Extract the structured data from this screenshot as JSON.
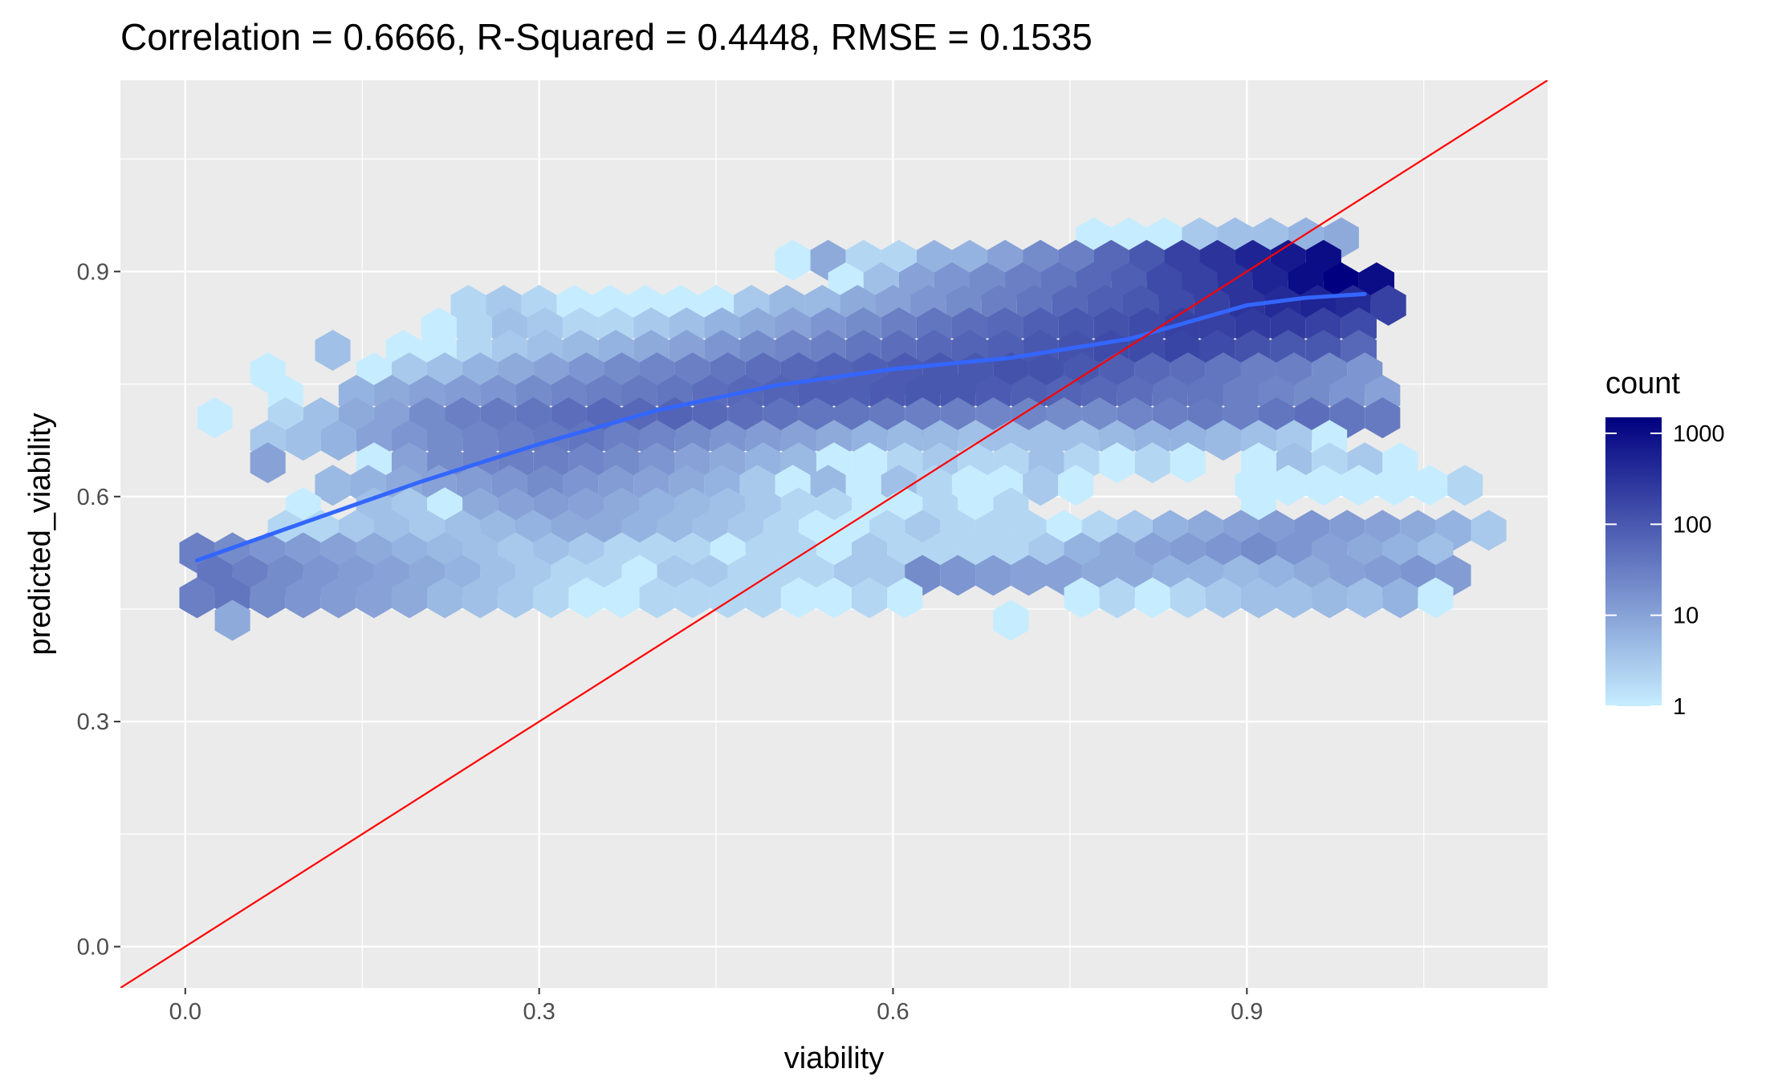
{
  "chart_data": {
    "type": "hexbin",
    "title": "Correlation = 0.6666, R-Squared = 0.4448, RMSE = 0.1535",
    "xlabel": "viability",
    "ylabel": "predicted_viability",
    "xlim": [
      -0.055,
      1.155
    ],
    "ylim": [
      -0.055,
      1.155
    ],
    "x_ticks": [
      0.0,
      0.3,
      0.6,
      0.9
    ],
    "x_tick_labels": [
      "0.0",
      "0.3",
      "0.6",
      "0.9"
    ],
    "y_ticks": [
      0.0,
      0.3,
      0.6,
      0.9
    ],
    "y_tick_labels": [
      "0.0",
      "0.3",
      "0.6",
      "0.9"
    ],
    "grid": true,
    "panel_background": "#EBEBEB",
    "fill_scale": {
      "title": "count",
      "transform": "log10",
      "low_color": "#C6EDFF",
      "high_color": "#000080",
      "breaks": [
        1,
        10,
        100,
        1000
      ],
      "break_labels": [
        "1",
        "10",
        "100",
        "1000"
      ],
      "max": 1500,
      "legend_position": "right"
    },
    "hex_width": 0.03,
    "hex_rows": [
      {
        "y": 0.945,
        "x_start": 0.77,
        "counts": [
          1,
          1,
          1,
          3,
          4,
          4,
          6,
          8
        ]
      },
      {
        "y": 0.915,
        "x_start": 0.515,
        "counts": [
          1,
          8,
          2,
          2,
          6,
          6,
          10,
          20,
          30,
          60,
          100,
          200,
          300,
          500,
          700,
          1000
        ]
      },
      {
        "y": 0.885,
        "x_start": 0.56,
        "counts": [
          1,
          4,
          10,
          15,
          20,
          30,
          40,
          60,
          80,
          150,
          200,
          300,
          500,
          1000,
          1500,
          1000
        ]
      },
      {
        "y": 0.855,
        "x_start": 0.24,
        "counts": [
          2,
          3,
          2,
          1,
          1,
          1,
          1,
          1,
          3,
          5,
          5,
          8,
          10,
          15,
          20,
          30,
          40,
          60,
          80,
          100,
          150,
          200,
          300,
          400,
          500,
          400,
          200
        ]
      },
      {
        "y": 0.825,
        "x_start": 0.215,
        "counts": [
          1,
          2,
          4,
          3,
          2,
          2,
          3,
          4,
          6,
          8,
          10,
          15,
          20,
          30,
          40,
          50,
          60,
          80,
          100,
          120,
          150,
          200,
          200,
          250,
          250,
          200,
          150
        ]
      },
      {
        "y": 0.795,
        "x_start": 0.125,
        "counts": [
          4,
          0,
          1,
          1,
          2,
          3,
          4,
          5,
          6,
          8,
          10,
          15,
          20,
          25,
          30,
          40,
          50,
          60,
          70,
          80,
          100,
          120,
          150,
          150,
          180,
          150,
          120,
          100,
          100,
          60
        ]
      },
      {
        "y": 0.765,
        "x_start": 0.07,
        "counts": [
          1,
          0,
          0,
          1,
          3,
          4,
          6,
          8,
          10,
          15,
          20,
          25,
          30,
          40,
          50,
          60,
          70,
          80,
          90,
          100,
          100,
          120,
          120,
          100,
          80,
          60,
          50,
          40,
          30,
          30,
          20,
          15
        ]
      },
      {
        "y": 0.735,
        "x_start": 0.085,
        "counts": [
          1,
          0,
          6,
          8,
          10,
          12,
          15,
          20,
          25,
          30,
          35,
          40,
          50,
          60,
          70,
          80,
          80,
          90,
          100,
          100,
          90,
          80,
          70,
          60,
          50,
          40,
          40,
          30,
          25,
          20,
          15,
          10
        ]
      },
      {
        "y": 0.705,
        "x_start": 0.025,
        "counts": [
          1,
          0,
          2,
          4,
          8,
          10,
          20,
          30,
          35,
          40,
          50,
          60,
          60,
          70,
          60,
          50,
          45,
          40,
          40,
          35,
          30,
          30,
          25,
          25,
          20,
          20,
          25,
          30,
          35,
          30,
          40,
          50,
          40,
          35
        ]
      },
      {
        "y": 0.675,
        "x_start": 0.07,
        "counts": [
          3,
          4,
          6,
          10,
          15,
          20,
          25,
          30,
          35,
          40,
          30,
          25,
          20,
          15,
          12,
          10,
          8,
          6,
          5,
          5,
          4,
          4,
          4,
          4,
          5,
          6,
          6,
          5,
          4,
          3,
          1
        ]
      },
      {
        "y": 0.645,
        "x_start": 0.07,
        "counts": [
          10,
          0,
          0,
          1,
          10,
          20,
          25,
          30,
          30,
          25,
          20,
          15,
          10,
          8,
          6,
          5,
          1,
          1,
          2,
          3,
          2,
          2,
          4,
          2,
          1,
          2,
          1,
          0,
          1,
          4,
          2,
          3,
          1
        ]
      },
      {
        "y": 0.615,
        "x_start": 0.125,
        "counts": [
          5,
          6,
          8,
          10,
          12,
          15,
          20,
          15,
          12,
          10,
          8,
          6,
          3,
          1,
          5,
          1,
          4,
          2,
          1,
          1,
          3,
          1,
          0,
          0,
          0,
          0,
          1,
          1,
          1,
          1,
          1,
          1,
          2
        ]
      },
      {
        "y": 0.585,
        "x_start": 0.1,
        "counts": [
          1,
          0,
          4,
          3,
          1,
          8,
          10,
          12,
          10,
          8,
          6,
          5,
          4,
          3,
          2,
          2,
          1,
          1,
          2,
          1,
          2,
          0,
          0,
          0,
          0,
          0,
          0,
          1
        ]
      },
      {
        "y": 0.555,
        "x_start": 0.085,
        "counts": [
          2,
          2,
          3,
          4,
          3,
          4,
          5,
          6,
          8,
          8,
          6,
          5,
          4,
          3,
          2,
          1,
          1,
          2,
          3,
          2,
          2,
          2,
          1,
          2,
          3,
          6,
          8,
          10,
          12,
          15,
          12,
          10,
          8,
          6,
          3
        ]
      },
      {
        "y": 0.525,
        "x_start": 0.01,
        "counts": [
          30,
          20,
          15,
          12,
          10,
          8,
          6,
          5,
          4,
          3,
          4,
          3,
          2,
          2,
          2,
          1,
          2,
          2,
          1,
          3,
          2,
          2,
          2,
          2,
          3,
          6,
          8,
          10,
          12,
          15,
          20,
          15,
          10,
          8,
          6,
          4
        ]
      },
      {
        "y": 0.495,
        "x_start": 0.025,
        "counts": [
          40,
          30,
          20,
          15,
          12,
          10,
          8,
          6,
          4,
          3,
          2,
          2,
          1,
          3,
          3,
          2,
          2,
          2,
          3,
          3,
          20,
          15,
          12,
          10,
          10,
          8,
          8,
          6,
          6,
          5,
          6,
          8,
          10,
          12,
          15,
          12
        ]
      },
      {
        "y": 0.465,
        "x_start": 0.01,
        "counts": [
          30,
          40,
          20,
          15,
          12,
          10,
          8,
          5,
          4,
          3,
          2,
          1,
          1,
          2,
          2,
          2,
          2,
          1,
          1,
          2,
          1,
          0,
          0,
          0,
          0,
          1,
          2,
          1,
          2,
          3,
          4,
          4,
          5,
          4,
          6,
          1
        ]
      },
      {
        "y": 0.435,
        "x_start": 0.04,
        "counts": [
          8
        ]
      },
      {
        "y": 0.435,
        "x_start": 0.7,
        "counts": [
          1
        ]
      }
    ],
    "series": [
      {
        "name": "smooth",
        "type": "line",
        "color": "#3366FF",
        "x": [
          0.01,
          0.1,
          0.2,
          0.3,
          0.4,
          0.5,
          0.6,
          0.7,
          0.8,
          0.9,
          0.95,
          1.0
        ],
        "y": [
          0.515,
          0.565,
          0.62,
          0.67,
          0.715,
          0.748,
          0.77,
          0.785,
          0.81,
          0.855,
          0.865,
          0.87
        ]
      },
      {
        "name": "identity",
        "type": "line",
        "color": "#FF0000",
        "x": [
          -0.055,
          1.155
        ],
        "y": [
          -0.055,
          1.155
        ]
      }
    ]
  }
}
